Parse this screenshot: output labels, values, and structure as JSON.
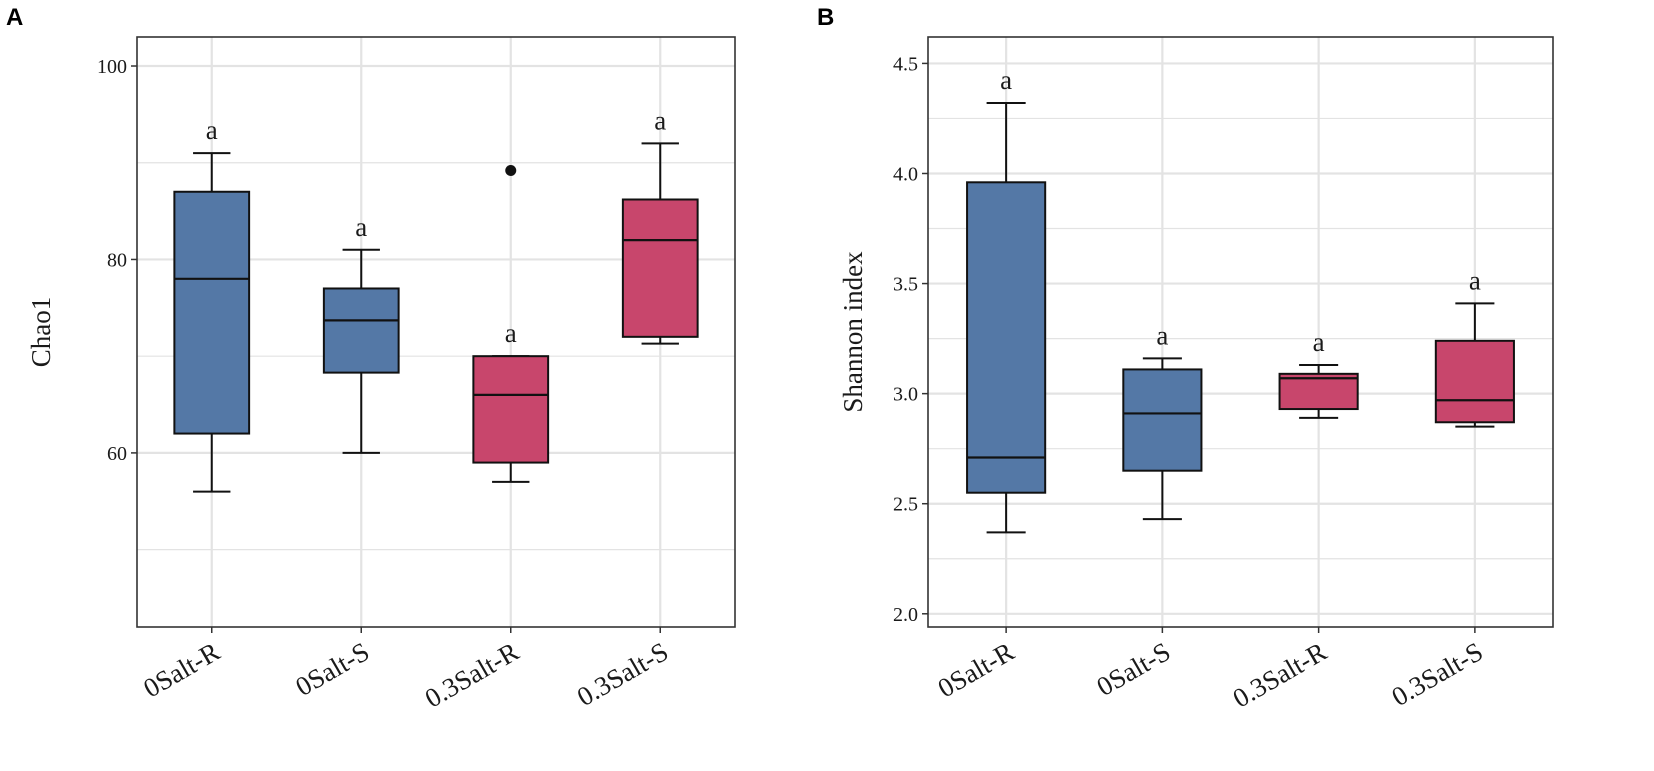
{
  "colors": {
    "blue": "#5478a6",
    "red": "#c8466c",
    "grid": "#e3e3e3",
    "frame": "#333333"
  },
  "chart_data": [
    {
      "type": "boxplot",
      "panel": "A",
      "ylabel": "Chao1",
      "ylim": [
        42,
        103
      ],
      "yticks": [
        60,
        80,
        100
      ],
      "ytick_labels": [
        "60",
        "80",
        "100"
      ],
      "grid": true,
      "categories": [
        "0Salt-R",
        "0Salt-S",
        "0.3Salt-R",
        "0.3Salt-S"
      ],
      "boxes": [
        {
          "category": "0Salt-R",
          "color": "blue",
          "whisker_low": 56,
          "q1": 62,
          "median": 78,
          "q3": 87,
          "whisker_high": 91,
          "outliers": [],
          "label": "a"
        },
        {
          "category": "0Salt-S",
          "color": "blue",
          "whisker_low": 60,
          "q1": 68.3,
          "median": 73.7,
          "q3": 77,
          "whisker_high": 81,
          "outliers": [],
          "label": "a"
        },
        {
          "category": "0.3Salt-R",
          "color": "red",
          "whisker_low": 57,
          "q1": 59,
          "median": 66,
          "q3": 70,
          "whisker_high": 70,
          "outliers": [
            89.2
          ],
          "label": "a"
        },
        {
          "category": "0.3Salt-S",
          "color": "red",
          "whisker_low": 71.3,
          "q1": 72,
          "median": 82,
          "q3": 86.2,
          "whisker_high": 92,
          "outliers": [],
          "label": "a"
        }
      ]
    },
    {
      "type": "boxplot",
      "panel": "B",
      "ylabel": "Shannon index",
      "ylim": [
        1.94,
        4.62
      ],
      "yticks": [
        2.0,
        2.5,
        3.0,
        3.5,
        4.0,
        4.5
      ],
      "ytick_labels": [
        "2.0",
        "2.5",
        "3.0",
        "3.5",
        "4.0",
        "4.5"
      ],
      "grid": true,
      "categories": [
        "0Salt-R",
        "0Salt-S",
        "0.3Salt-R",
        "0.3Salt-S"
      ],
      "boxes": [
        {
          "category": "0Salt-R",
          "color": "blue",
          "whisker_low": 2.37,
          "q1": 2.55,
          "median": 2.71,
          "q3": 3.96,
          "whisker_high": 4.32,
          "outliers": [],
          "label": "a"
        },
        {
          "category": "0Salt-S",
          "color": "blue",
          "whisker_low": 2.43,
          "q1": 2.65,
          "median": 2.91,
          "q3": 3.11,
          "whisker_high": 3.16,
          "outliers": [],
          "label": "a"
        },
        {
          "category": "0.3Salt-R",
          "color": "red",
          "whisker_low": 2.89,
          "q1": 2.93,
          "median": 3.07,
          "q3": 3.09,
          "whisker_high": 3.13,
          "outliers": [],
          "label": "a"
        },
        {
          "category": "0.3Salt-S",
          "color": "red",
          "whisker_low": 2.85,
          "q1": 2.87,
          "median": 2.97,
          "q3": 3.24,
          "whisker_high": 3.41,
          "outliers": [],
          "label": "a"
        }
      ]
    }
  ]
}
